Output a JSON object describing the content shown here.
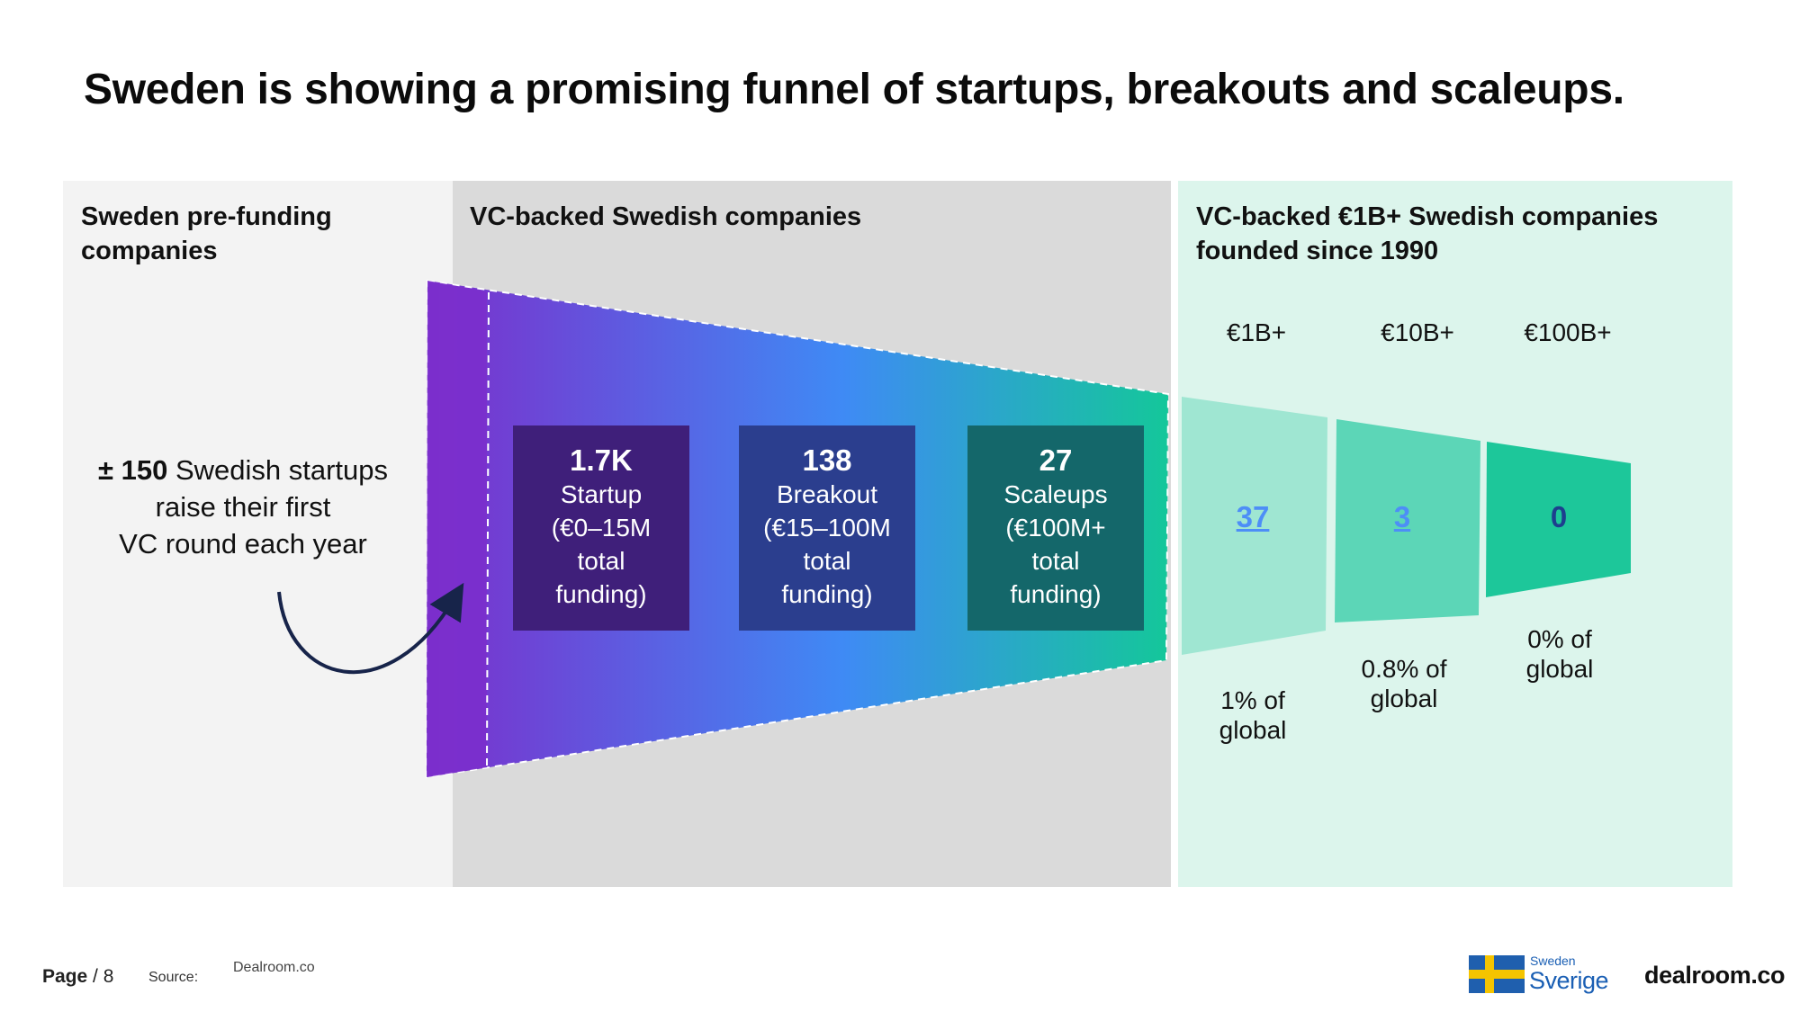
{
  "title": "Sweden is showing a promising funnel of startups, breakouts and scaleups.",
  "panels": {
    "pre_funding": {
      "title": "Sweden pre-funding\ncompanies"
    },
    "vc_backed": {
      "title": "VC-backed Swedish companies"
    },
    "unicorns": {
      "title": "VC-backed €1B+ Swedish companies\nfounded since 1990"
    }
  },
  "pre_funding_text": {
    "bold": "± 150",
    "line1": " Swedish startups",
    "line2": "raise their first",
    "line3": "VC round each year"
  },
  "stages": [
    {
      "value": "1.7K",
      "label": "Startup\n(€0–15M\ntotal\nfunding)"
    },
    {
      "value": "138",
      "label": "Breakout\n(€15–100M\ntotal\nfunding)"
    },
    {
      "value": "27",
      "label": "Scaleups\n(€100M+\ntotal\nfunding)"
    }
  ],
  "tiers": [
    {
      "header": "€1B+",
      "count": "37",
      "share": "1% of\nglobal",
      "color": "#9fe6d2"
    },
    {
      "header": "€10B+",
      "count": "3",
      "share": "0.8% of\nglobal",
      "color": "#5cd6b7"
    },
    {
      "header": "€100B+",
      "count": "0",
      "share": "0% of\nglobal",
      "color": "#1dc79a"
    }
  ],
  "colors": {
    "funnel_start": "#7b2fcc",
    "funnel_mid": "#3f8af5",
    "funnel_end": "#14c79a",
    "stage_boxes": [
      "#3f1f7a",
      "#2b3e8e",
      "#14676a"
    ],
    "arrow": "#17244a"
  },
  "footer": {
    "page_label": "Page",
    "page_number": " / 8",
    "source_label": "Source:",
    "source": "Dealroom.co",
    "brand_small": "Sweden",
    "brand_big": "Sverige",
    "logo": "dealroom.co"
  }
}
